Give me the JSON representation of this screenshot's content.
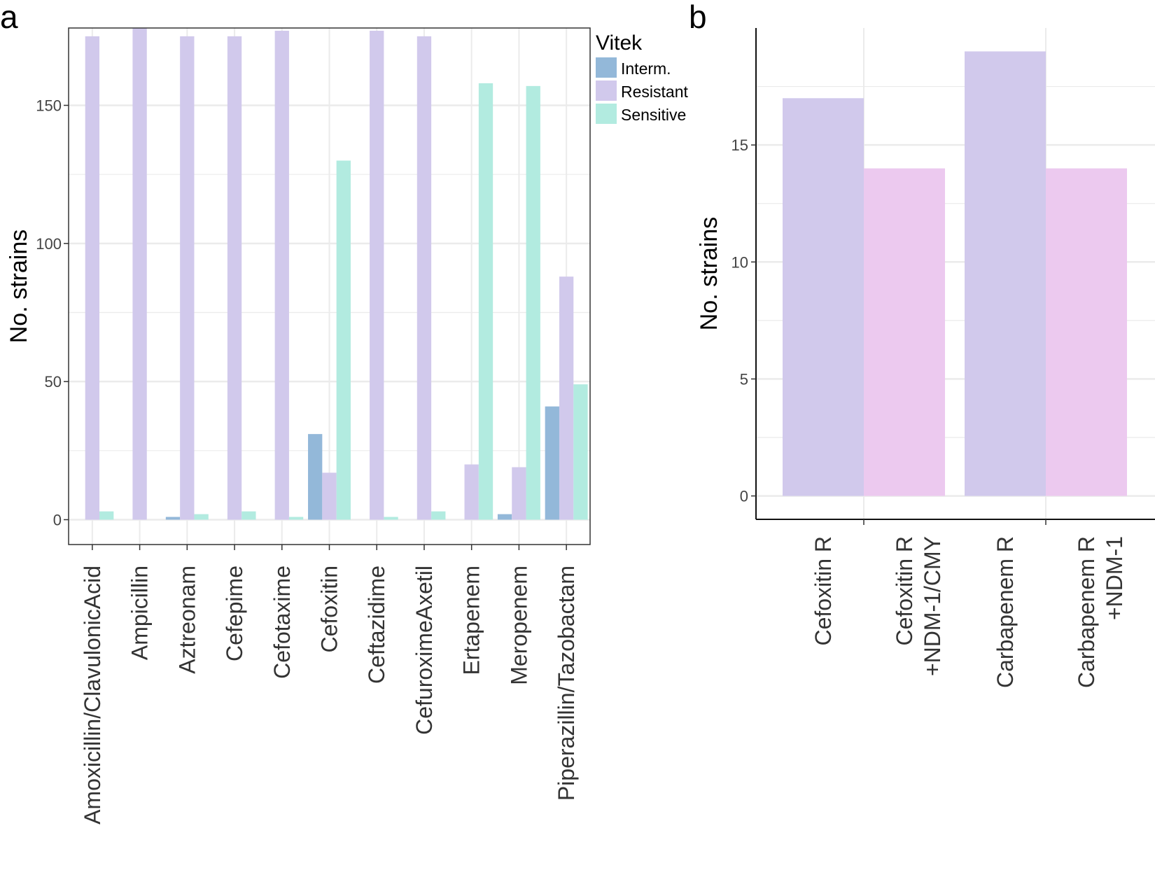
{
  "figure": {
    "panel_a_letter": "a",
    "panel_b_letter": "b"
  },
  "colors": {
    "interm": "#93b8d9",
    "resistant": "#d1c9ec",
    "sensitive": "#b2ebe0",
    "ndm": "#ecc9ef",
    "grid": "#ebebeb",
    "axis": "#333333"
  },
  "chart_data": [
    {
      "panel": "a",
      "type": "bar",
      "title": "",
      "xlabel": "",
      "ylabel": "No. strains",
      "ylim": [
        -9,
        178
      ],
      "yticks": [
        0,
        50,
        100,
        150
      ],
      "grid": true,
      "legend": {
        "title": "Vitek",
        "position": "top-right-outside",
        "entries": [
          "Interm.",
          "Resistant",
          "Sensitive"
        ]
      },
      "categories": [
        "Amoxicillin/ClavulonicAcid",
        "Ampicillin",
        "Aztreonam",
        "Cefepime",
        "Cefotaxime",
        "Cefoxitin",
        "Ceftazidime",
        "CefuroximeAxetil",
        "Ertapenem",
        "Meropenem",
        "Piperazillin/Tazobactam"
      ],
      "series": [
        {
          "name": "Interm.",
          "color_key": "interm",
          "values": [
            0,
            0,
            1,
            0,
            0,
            31,
            0,
            0,
            0,
            2,
            41
          ]
        },
        {
          "name": "Resistant",
          "color_key": "resistant",
          "values": [
            175,
            178,
            175,
            175,
            177,
            17,
            177,
            175,
            20,
            19,
            88
          ]
        },
        {
          "name": "Sensitive",
          "color_key": "sensitive",
          "values": [
            3,
            0,
            2,
            3,
            1,
            130,
            1,
            3,
            158,
            157,
            49
          ]
        }
      ]
    },
    {
      "panel": "b",
      "type": "bar",
      "title": "",
      "xlabel": "",
      "ylabel": "No. strains",
      "ylim": [
        -1,
        20
      ],
      "yticks": [
        0,
        5,
        10,
        15
      ],
      "grid": true,
      "categories": [
        [
          "Cefoxitin R"
        ],
        [
          "Cefoxitin R",
          "+NDM-1/CMY"
        ],
        [
          "Carbapenem R"
        ],
        [
          "Carbapenem R",
          "+NDM-1"
        ]
      ],
      "values": [
        17,
        14,
        19,
        14
      ],
      "bar_colors": [
        "resistant",
        "ndm",
        "resistant",
        "ndm"
      ]
    }
  ]
}
